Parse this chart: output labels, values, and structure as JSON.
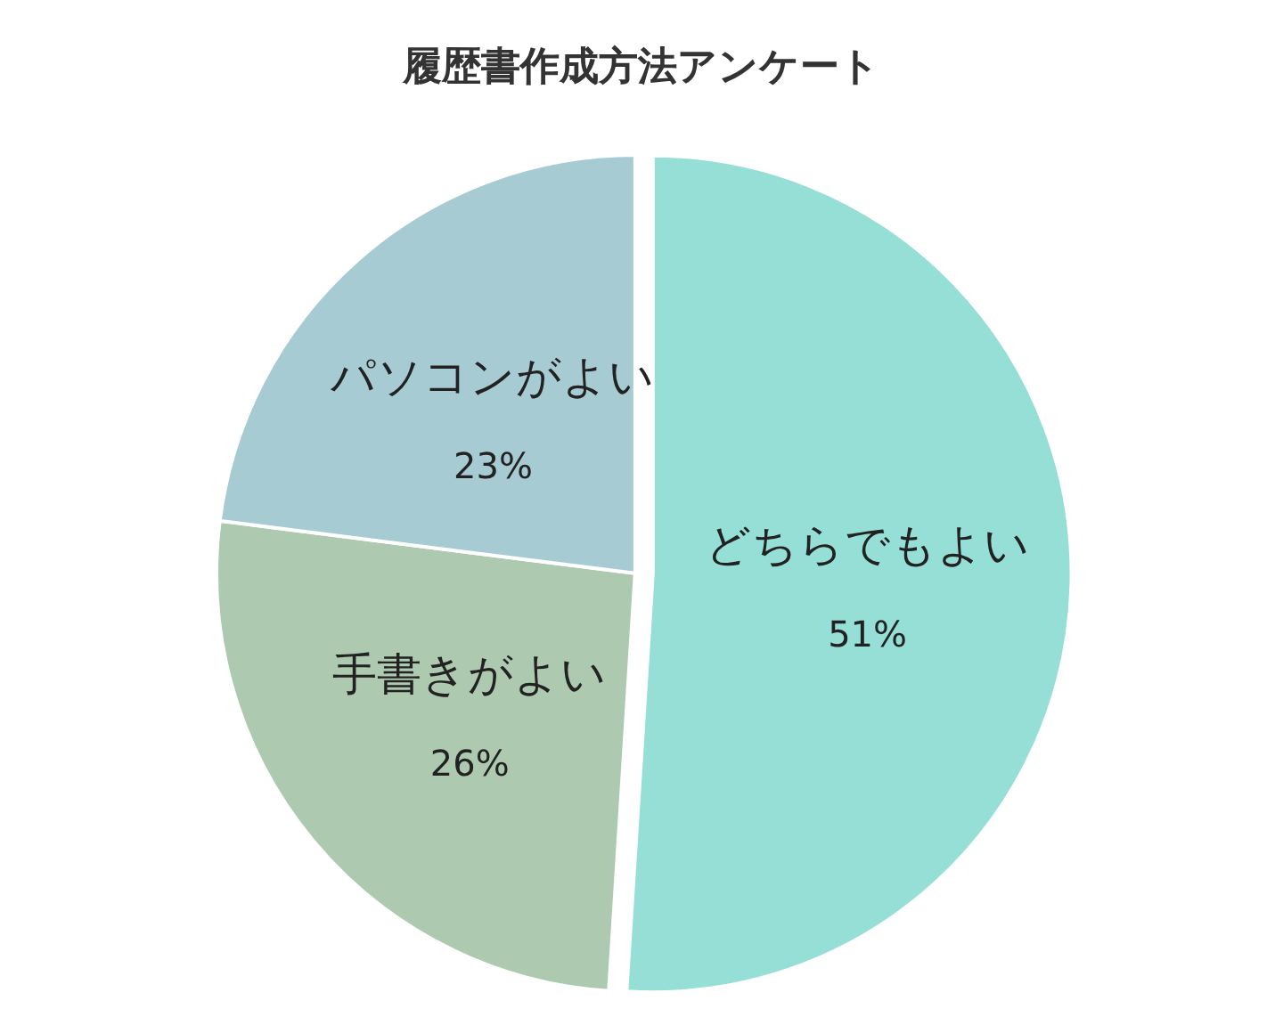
{
  "chart_data": {
    "type": "pie",
    "title": "履歴書作成方法アンケート",
    "categories": [
      "どちらでもよい",
      "手書きがよい",
      "パソコンがよい"
    ],
    "values": [
      51,
      26,
      23
    ],
    "value_labels": [
      "51%",
      "26%",
      "23%"
    ],
    "colors": [
      "#95dfd6",
      "#adcab0",
      "#a7cbd3"
    ],
    "legend": false
  }
}
